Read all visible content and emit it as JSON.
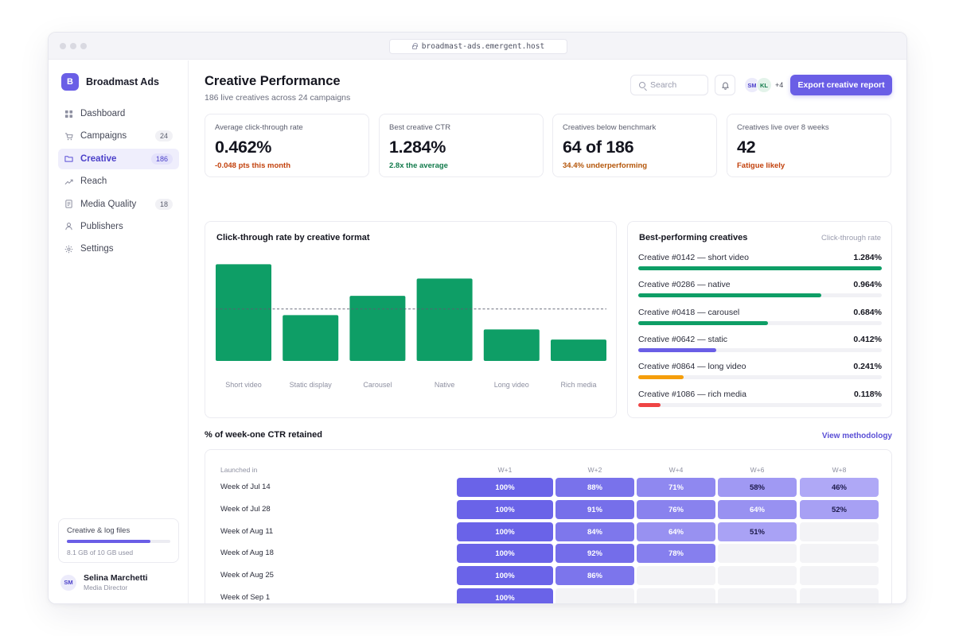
{
  "window": {
    "url": "broadmast-ads.emergent.host"
  },
  "brand": {
    "logo_letter": "B",
    "name": "Broadmast Ads"
  },
  "nav": [
    {
      "label": "Dashboard",
      "icon": "grid-icon",
      "badge": "",
      "active": false
    },
    {
      "label": "Campaigns",
      "icon": "cart-icon",
      "badge": "24",
      "active": false
    },
    {
      "label": "Creative",
      "icon": "folder-icon",
      "badge": "186",
      "active": true
    },
    {
      "label": "Reach",
      "icon": "trend-icon",
      "badge": "",
      "active": false
    },
    {
      "label": "Media Quality",
      "icon": "document-icon",
      "badge": "18",
      "active": false
    },
    {
      "label": "Publishers",
      "icon": "person-icon",
      "badge": "",
      "active": false
    },
    {
      "label": "Settings",
      "icon": "gear-icon",
      "badge": "",
      "active": false
    }
  ],
  "storage": {
    "title": "Creative & log files",
    "used_fraction": 0.81,
    "label": "8.1 GB of 10 GB used"
  },
  "user": {
    "initials": "SM",
    "name": "Selina Marchetti",
    "role": "Media Director"
  },
  "header": {
    "title": "Creative Performance",
    "subtitle": "186 live creatives across 24 campaigns",
    "search_placeholder": "Search",
    "avatars": [
      {
        "initials": "SM",
        "bg": "#ecebfb",
        "fg": "#4b40c9"
      },
      {
        "initials": "KL",
        "bg": "#e3f3ea",
        "fg": "#117a4b"
      }
    ],
    "avatars_more": "+4",
    "export_label": "Export creative report"
  },
  "kpis": [
    {
      "label": "Average click-through rate",
      "value": "0.462%",
      "note": "-0.048 pts this month",
      "note_color": "#c2410c"
    },
    {
      "label": "Best creative CTR",
      "value": "1.284%",
      "note": "2.8x the average",
      "note_color": "#117a4b"
    },
    {
      "label": "Creatives below benchmark",
      "value": "64 of 186",
      "note": "34.4% underperforming",
      "note_color": "#b4560a"
    },
    {
      "label": "Creatives live over 8 weeks",
      "value": "42",
      "note": "Fatigue likely",
      "note_color": "#c2410c"
    }
  ],
  "chart_data": {
    "type": "bar",
    "title": "Click-through rate by creative format",
    "categories": [
      "Short video",
      "Static display",
      "Carousel",
      "Native",
      "Long video",
      "Rich media"
    ],
    "values": [
      0.95,
      0.45,
      0.64,
      0.81,
      0.31,
      0.21
    ],
    "ylim": [
      0,
      1.0
    ],
    "reference_line": 0.51,
    "bar_color": "#0e9e66",
    "grid": false
  },
  "best": {
    "title": "Best-performing creatives",
    "column_label": "Click-through rate",
    "max": 1.284,
    "items": [
      {
        "name": "Creative #0142 — short video",
        "value": 1.284,
        "label": "1.284%",
        "color": "#0e9e66"
      },
      {
        "name": "Creative #0286 — native",
        "value": 0.964,
        "label": "0.964%",
        "color": "#0e9e66"
      },
      {
        "name": "Creative #0418 — carousel",
        "value": 0.684,
        "label": "0.684%",
        "color": "#0e9e66"
      },
      {
        "name": "Creative #0642 — static",
        "value": 0.412,
        "label": "0.412%",
        "color": "#6a5ee6"
      },
      {
        "name": "Creative #0864 — long video",
        "value": 0.241,
        "label": "0.241%",
        "color": "#f59e0b"
      },
      {
        "name": "Creative #1086 — rich media",
        "value": 0.118,
        "label": "0.118%",
        "color": "#ef4444"
      }
    ]
  },
  "cohort": {
    "title": "% of week-one CTR retained",
    "link": "View methodology",
    "row_header": "Launched in",
    "columns": [
      "W+1",
      "W+2",
      "W+4",
      "W+6",
      "W+8"
    ],
    "rows": [
      {
        "label": "Week of Jul 14",
        "values": [
          100,
          88,
          71,
          58,
          46
        ]
      },
      {
        "label": "Week of Jul 28",
        "values": [
          100,
          91,
          76,
          64,
          52
        ]
      },
      {
        "label": "Week of Aug 11",
        "values": [
          100,
          84,
          64,
          51,
          null
        ]
      },
      {
        "label": "Week of Aug 18",
        "values": [
          100,
          92,
          78,
          null,
          null
        ]
      },
      {
        "label": "Week of Aug 25",
        "values": [
          100,
          86,
          null,
          null,
          null
        ]
      },
      {
        "label": "Week of Sep 1",
        "values": [
          100,
          null,
          null,
          null,
          null
        ]
      }
    ]
  }
}
